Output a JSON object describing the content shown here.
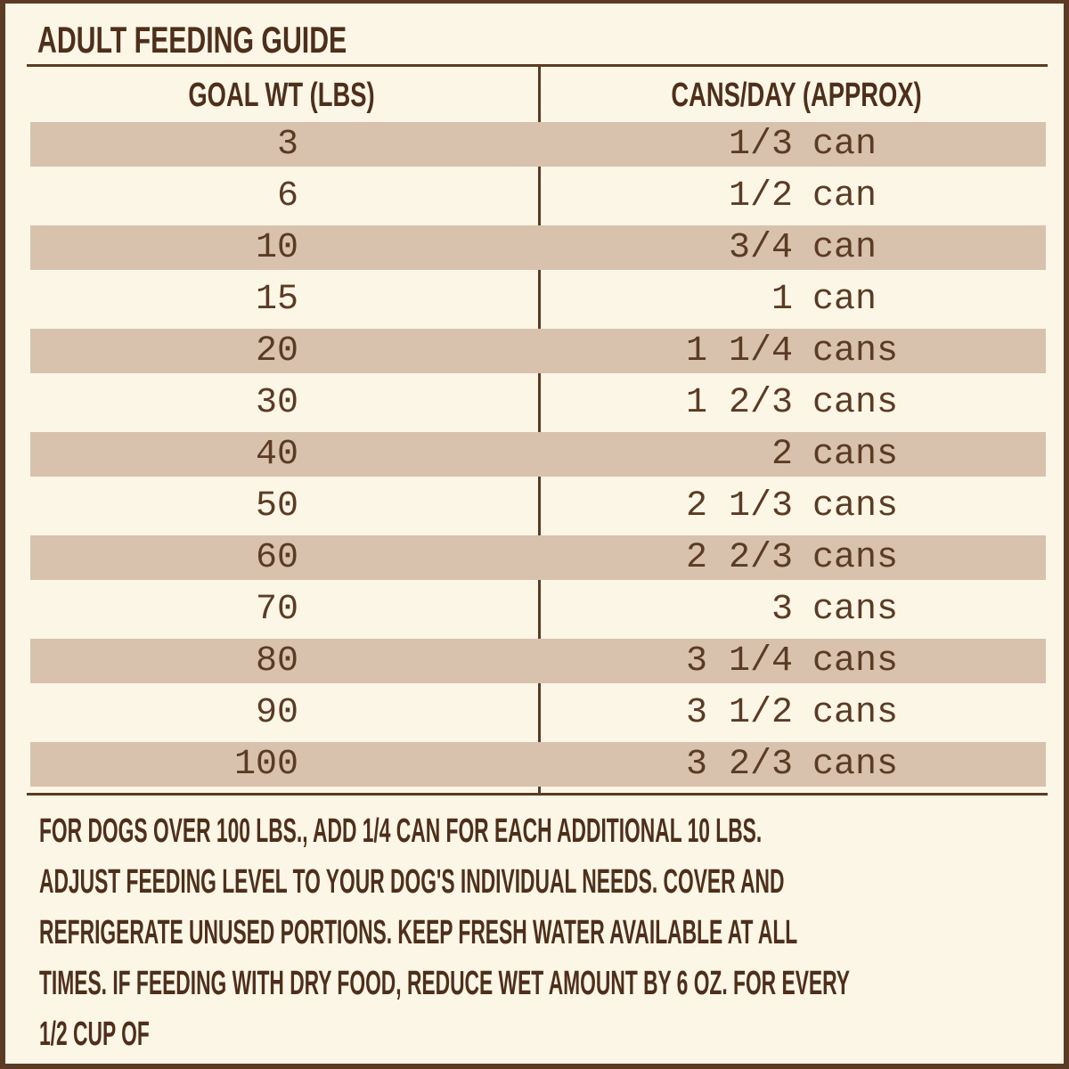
{
  "title": "ADULT FEEDING GUIDE",
  "table": {
    "headers": [
      "GOAL WT (LBS)",
      "CANS/DAY (APPROX)"
    ],
    "rows": [
      [
        "3",
        "1/3",
        "can"
      ],
      [
        "6",
        "1/2",
        "can"
      ],
      [
        "10",
        "3/4",
        "can"
      ],
      [
        "15",
        "1",
        "can"
      ],
      [
        "20",
        "1 1/4",
        "cans"
      ],
      [
        "30",
        "1 2/3",
        "cans"
      ],
      [
        "40",
        "2",
        "cans"
      ],
      [
        "50",
        "2 1/3",
        "cans"
      ],
      [
        "60",
        "2 2/3",
        "cans"
      ],
      [
        "70",
        "3",
        "cans"
      ],
      [
        "80",
        "3 1/4",
        "cans"
      ],
      [
        "90",
        "3 1/2",
        "cans"
      ],
      [
        "100",
        "3 2/3",
        "cans"
      ]
    ]
  },
  "note": {
    "lines": [
      "FOR DOGS OVER 100 LBS., ADD 1/4 CAN FOR EACH ADDITIONAL 10 LBS.",
      "ADJUST FEEDING LEVEL TO YOUR DOG'S INDIVIDUAL NEEDS. COVER AND",
      "REFRIGERATE UNUSED PORTIONS. KEEP FRESH WATER AVAILABLE AT ALL",
      "TIMES. IF FEEDING WITH DRY FOOD, REDUCE WET AMOUNT BY 6 OZ. FOR EVERY",
      "1/2 CUP OF"
    ]
  }
}
